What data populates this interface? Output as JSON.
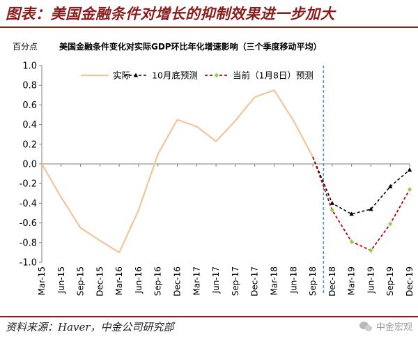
{
  "header": {
    "title": "图表：美国金融条件对增长的抑制效果进一步加大"
  },
  "footer": {
    "source": "资料来源：Haver，中金公司研究部",
    "watermark": "中金宏观"
  },
  "colors": {
    "brand_red": "#8c1d1d",
    "actual": "#f5c39a",
    "oct_forecast": "#000000",
    "current_forecast": "#c00000",
    "current_marker": "#92d050",
    "divider": "#4a90d9"
  },
  "chart_data": {
    "type": "line",
    "title": "美国金融条件变化对实际GDP环比年化增速影响（三个季度移动平均）",
    "ylabel": "百分点",
    "xlabel": "",
    "ylim": [
      -1.0,
      1.0
    ],
    "y_ticks": [
      "1.0",
      "0.8",
      "0.6",
      "0.4",
      "0.2",
      "0.0",
      "-0.2",
      "-0.4",
      "-0.6",
      "-0.8",
      "-1.0"
    ],
    "categories": [
      "Mar-15",
      "Jun-15",
      "Sep-15",
      "Dec-15",
      "Mar-16",
      "Jun-16",
      "Sep-16",
      "Dec-16",
      "Mar-17",
      "Jun-17",
      "Sep-17",
      "Dec-17",
      "Mar-18",
      "Jun-18",
      "Sep-18",
      "Dec-18",
      "Mar-19",
      "Jun-19",
      "Sep-19",
      "Dec-19"
    ],
    "divider_after": "Sep-18",
    "legend_position": "top",
    "grid": false,
    "series": [
      {
        "name": "实际",
        "style": "solid",
        "values": [
          0.0,
          -0.34,
          -0.65,
          -0.78,
          -0.9,
          -0.47,
          0.1,
          0.45,
          0.38,
          0.23,
          0.44,
          0.68,
          0.75,
          0.44,
          0.07,
          null,
          null,
          null,
          null,
          null
        ]
      },
      {
        "name": "10月底预测",
        "style": "dashed",
        "marker": "triangle",
        "values": [
          null,
          null,
          null,
          null,
          null,
          null,
          null,
          null,
          null,
          null,
          null,
          null,
          null,
          null,
          0.07,
          -0.4,
          -0.51,
          -0.46,
          -0.23,
          -0.06
        ]
      },
      {
        "name": "当前（1月8日）预测",
        "style": "dashed",
        "marker": "diamond",
        "values": [
          null,
          null,
          null,
          null,
          null,
          null,
          null,
          null,
          null,
          null,
          null,
          null,
          null,
          null,
          0.07,
          -0.47,
          -0.79,
          -0.88,
          -0.61,
          -0.26
        ]
      }
    ]
  }
}
